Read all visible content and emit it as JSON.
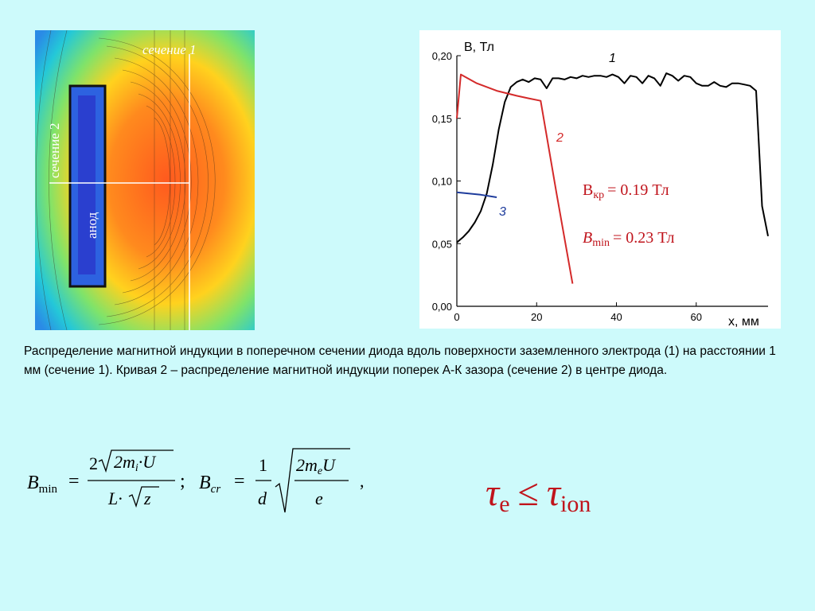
{
  "fieldmap": {
    "section1_label": "сечение 1",
    "section2_label": "сечение 2",
    "anode_label": "анод"
  },
  "chart_data": {
    "type": "line",
    "ylabel": "B, Тл",
    "xlabel": "x, мм",
    "xlim": [
      0,
      78
    ],
    "ylim": [
      0,
      0.2
    ],
    "x_ticks": [
      0,
      20,
      40,
      60
    ],
    "x_tick_labels": [
      "0",
      "20",
      "40",
      "60"
    ],
    "y_ticks": [
      0.0,
      0.05,
      0.1,
      0.15,
      0.2
    ],
    "y_tick_labels": [
      "0,00",
      "0,05",
      "0,10",
      "0,15",
      "0,20"
    ],
    "grid": false,
    "series": [
      {
        "name": "1",
        "color": "#000000",
        "x": [
          0,
          1.5,
          3,
          4.5,
          6,
          7.5,
          9,
          10.5,
          12,
          13.5,
          15,
          16.5,
          18,
          19.5,
          21,
          22.5,
          24,
          25.5,
          27,
          28.5,
          30,
          31.5,
          33,
          34.5,
          36,
          37.5,
          39,
          40.5,
          42,
          43.5,
          45,
          46.5,
          48,
          49.5,
          51,
          52.5,
          54,
          55.5,
          57,
          58.5,
          60,
          61.5,
          63,
          64.5,
          66,
          67.5,
          69,
          70.5,
          72,
          73.5,
          75,
          76.5,
          78
        ],
        "y": [
          0.051,
          0.055,
          0.06,
          0.067,
          0.076,
          0.09,
          0.113,
          0.141,
          0.163,
          0.175,
          0.179,
          0.181,
          0.179,
          0.182,
          0.181,
          0.174,
          0.182,
          0.182,
          0.181,
          0.183,
          0.182,
          0.184,
          0.183,
          0.184,
          0.184,
          0.183,
          0.185,
          0.183,
          0.178,
          0.184,
          0.183,
          0.178,
          0.184,
          0.182,
          0.176,
          0.186,
          0.184,
          0.18,
          0.184,
          0.183,
          0.178,
          0.176,
          0.176,
          0.179,
          0.176,
          0.175,
          0.178,
          0.178,
          0.177,
          0.176,
          0.172,
          0.08,
          0.056
        ]
      },
      {
        "name": "2",
        "color": "#d42a2a",
        "x": [
          0,
          1,
          5,
          10,
          15,
          18,
          21,
          25,
          29
        ],
        "y": [
          0.15,
          0.185,
          0.178,
          0.172,
          0.168,
          0.166,
          0.164,
          0.09,
          0.018
        ]
      },
      {
        "name": "3",
        "color": "#1e3c9c",
        "x": [
          0,
          3,
          6,
          10
        ],
        "y": [
          0.091,
          0.09,
          0.089,
          0.087
        ]
      }
    ],
    "annotations": {
      "curve1_label": "1",
      "curve2_label": "2",
      "curve3_label": "3",
      "bkr_text": "B",
      "bkr_sub": "кр",
      "bkr_value": "= 0.19 Тл",
      "bmin_text": "B",
      "bmin_sub": "min",
      "bmin_value": "= 0.23 Тл"
    }
  },
  "caption": "Распределение магнитной индукции в поперечном сечении диода вдоль поверхности заземленного электрода (1) на расстоянии 1 мм (сечение 1). Кривая 2 – распределение магнитной индукции поперек А-К зазора (сечение 2) в центре диода.",
  "formula_bmin": {
    "lhs": "B",
    "lhs_sub": "min",
    "eq": "=",
    "num_coef": "2",
    "num_rad": "2m",
    "num_rad_sub": "i",
    "num_rad_rest": "·U",
    "den": "L·",
    "den_rad": "z",
    "sep": ";"
  },
  "formula_bcr": {
    "lhs": "B",
    "lhs_sub": "cr",
    "eq": "=",
    "frac_num": "1",
    "frac_den": "d",
    "rad_num": "2m",
    "rad_num_sub": "e",
    "rad_num_rest": "U",
    "rad_den": "e",
    "end": ","
  },
  "tau": {
    "lhs": "τ",
    "lhs_sub": "e",
    "op": "≤",
    "rhs": "τ",
    "rhs_sub": "ion"
  },
  "colors": {
    "background": "#cdfafb",
    "curve1": "#000000",
    "curve2": "#d42a2a",
    "curve3": "#1e3c9c",
    "annotation_red": "#c0141c"
  }
}
